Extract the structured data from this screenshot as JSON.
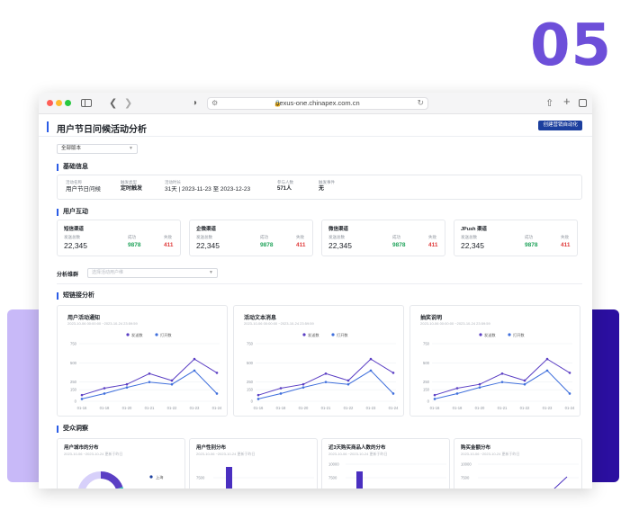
{
  "step_number": "05",
  "browser": {
    "url": "nexus-one.chinapex.com.cn"
  },
  "header": {
    "title": "用户节日问候活动分析",
    "primary_button": "创建营销自动化"
  },
  "version_select": "全部版本",
  "basic_info": {
    "title": "基础信息",
    "fields": [
      {
        "key": "活动名称",
        "value": "用户节日问候"
      },
      {
        "key": "触发类型",
        "value": "定时触发"
      },
      {
        "key": "活动时长",
        "value": "31天  |  2023-11-23 至 2023-12-23"
      },
      {
        "key": "参与人数",
        "value": "571人"
      },
      {
        "key": "触发事件",
        "value": "无"
      }
    ]
  },
  "interaction": {
    "title": "用户互动",
    "channels": [
      {
        "name": "短信渠道",
        "sent_label": "发送总数",
        "sent": "22,345",
        "success_label": "成功",
        "success": "9878",
        "fail_label": "失败",
        "fail": "411"
      },
      {
        "name": "企微渠道",
        "sent_label": "发送总数",
        "sent": "22,345",
        "success_label": "成功",
        "success": "9878",
        "fail_label": "失败",
        "fail": "411"
      },
      {
        "name": "微信渠道",
        "sent_label": "发送总数",
        "sent": "22,345",
        "success_label": "成功",
        "success": "9878",
        "fail_label": "失败",
        "fail": "411"
      },
      {
        "name": "JPush 渠道",
        "sent_label": "发送总数",
        "sent": "22,345",
        "success_label": "成功",
        "success": "9878",
        "fail_label": "失败",
        "fail": "411"
      }
    ]
  },
  "filter": {
    "label": "分析维群",
    "placeholder": "选择活动用户维"
  },
  "link_analysis": {
    "title": "短链接分析"
  },
  "colors": {
    "accent": "#2b5ce6",
    "button": "#1c3f9e",
    "series_sent": "#5b3fc4",
    "series_open": "#3f6fdc",
    "success": "#20a35a",
    "fail": "#e03b3b",
    "step_number": "#6d4fd9"
  },
  "chart_data": [
    {
      "type": "line",
      "title": "用户活动通知",
      "subtitle": "2023-10-06 00:00:00 ~2023-10-24 23:59:59",
      "categories": [
        "01-16",
        "01-18",
        "01-20",
        "01-21",
        "01-22",
        "01-23",
        "01-24"
      ],
      "ylim": [
        0,
        750
      ],
      "yticks": [
        0,
        150,
        250,
        500,
        750
      ],
      "legend": "top-center",
      "series": [
        {
          "name": "发送数",
          "values": [
            80,
            170,
            220,
            360,
            270,
            550,
            370
          ]
        },
        {
          "name": "打开数",
          "values": [
            30,
            100,
            180,
            250,
            220,
            400,
            100
          ]
        }
      ]
    },
    {
      "type": "line",
      "title": "活动文本消息",
      "subtitle": "2023-10-06 00:00:00 ~2023-10-24 23:59:59",
      "categories": [
        "01-16",
        "01-18",
        "01-20",
        "01-21",
        "01-22",
        "01-23",
        "01-24"
      ],
      "ylim": [
        0,
        750
      ],
      "yticks": [
        0,
        150,
        250,
        500,
        750
      ],
      "legend": "top-center",
      "series": [
        {
          "name": "发送数",
          "values": [
            80,
            170,
            220,
            360,
            270,
            550,
            370
          ]
        },
        {
          "name": "打开数",
          "values": [
            30,
            100,
            180,
            250,
            220,
            400,
            100
          ]
        }
      ]
    },
    {
      "type": "line",
      "title": "抽奖说明",
      "subtitle": "2023-10-06 00:00:00 ~2023-10-24 23:59:59",
      "categories": [
        "01-16",
        "01-18",
        "01-20",
        "01-21",
        "01-22",
        "01-23",
        "01-24"
      ],
      "ylim": [
        0,
        750
      ],
      "yticks": [
        0,
        150,
        250,
        500,
        750
      ],
      "legend": "top-center",
      "series": [
        {
          "name": "发送数",
          "values": [
            80,
            170,
            220,
            360,
            270,
            550,
            370
          ]
        },
        {
          "name": "打开数",
          "values": [
            30,
            100,
            180,
            250,
            220,
            400,
            100
          ]
        }
      ]
    }
  ],
  "audience": {
    "title": "受众洞察",
    "cards": [
      {
        "title": "用户城市的分布",
        "subtitle": "2023-10-06 ~2023-10-24 更新于昨日",
        "legend": "上海"
      },
      {
        "title": "用户性别分布",
        "subtitle": "2023-10-06 ~2023-10-24 更新于昨日",
        "yticks": [
          "7500"
        ]
      },
      {
        "title": "近3天购买商品人数的分布",
        "subtitle": "2023-10-06 ~2023-10-24 更新于昨日",
        "yticks": [
          "10000",
          "7500"
        ]
      },
      {
        "title": "购买金额分布",
        "subtitle": "2023-10-06 ~2023-10-24 更新于昨日",
        "yticks": [
          "10000",
          "7500"
        ]
      }
    ]
  }
}
